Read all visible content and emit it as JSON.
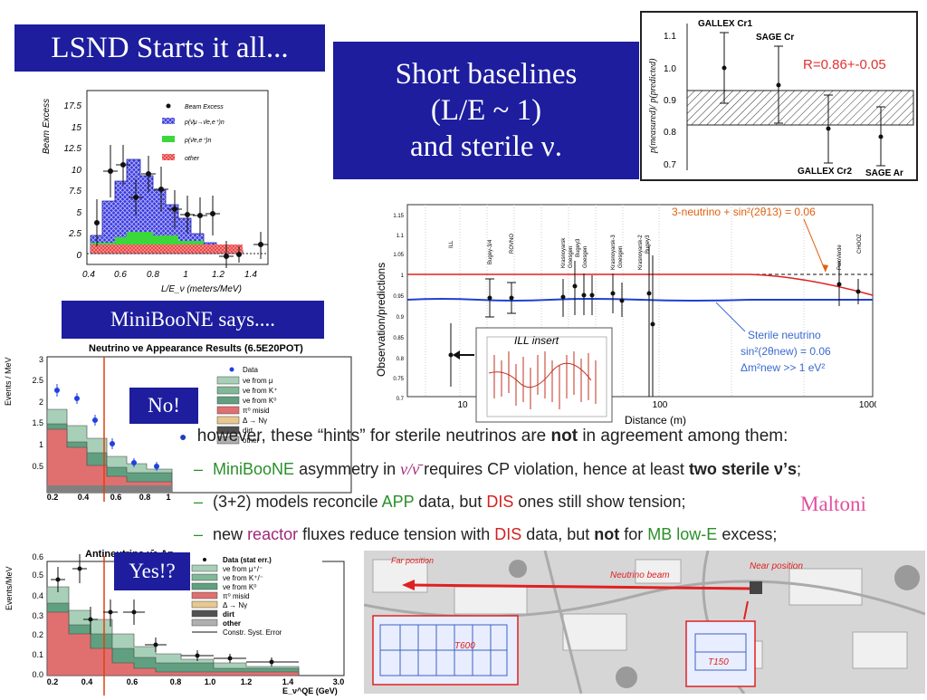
{
  "title_box": "LSND Starts it all...",
  "center_box": [
    "Short baselines",
    "(L/E ~ 1)",
    "and sterile ν."
  ],
  "miniboone_box": "MiniBooNE says....",
  "no_box": "No!",
  "yes_box": "Yes!?",
  "bullets": {
    "main": {
      "pre": "however, these “hints” for sterile neutrinos are ",
      "bold": "not",
      "post": " in agreement among them:"
    },
    "sub1": {
      "g": "MiniBooNE",
      "t1": " asymmetry in ",
      "nu": "ν/ν̄",
      "t2": " requires CP violation, hence at least ",
      "bold": "two sterile ν’s",
      "t3": ";"
    },
    "sub2": {
      "t1": "(3+2) models reconcile ",
      "g": "APP",
      "t2": " data, but ",
      "r": "DIS",
      "t3": " ones still show tension;"
    },
    "sub3": {
      "t1": "new ",
      "m": "reactor",
      "t2": " fluxes reduce tension with ",
      "r": "DIS",
      "t3": " data, but ",
      "bold": "not",
      "t4": " for ",
      "g": "MB low-E",
      "t5": " excess;"
    },
    "maltoni": "Maltoni"
  },
  "gallex_chart": {
    "ylabel": "p(measured)/ p(predicted)",
    "ticks": [
      "1.1",
      "1.0",
      "0.9",
      "0.8",
      "0.7"
    ],
    "annotation": "R=0.86+-0.05",
    "labels": [
      "GALLEX Cr1",
      "SAGE Cr",
      "GALLEX Cr2",
      "SAGE Ar"
    ]
  },
  "lsnd_chart": {
    "ylabel": "Beam Excess",
    "xlabel": "L/E_ν (meters/MeV)",
    "yticks": [
      "17.5",
      "15",
      "12.5",
      "10",
      "7.5",
      "5",
      "2.5",
      "0"
    ],
    "xticks": [
      "0.4",
      "0.6",
      "0.8",
      "1",
      "1.2",
      "1.4"
    ],
    "legend": [
      "Beam Excess",
      "p(ν̄μ→ν̄e,e⁺)n",
      "p(ν̄e,e⁺)n",
      "other"
    ]
  },
  "reactor_chart": {
    "ylabel": "Observation/predictions",
    "xlabel": "Distance (m)",
    "yticks": [
      "1.15",
      "1.1",
      "1.05",
      "1",
      "0.95",
      "0.9",
      "0.85",
      "0.8",
      "0.75",
      "0.7"
    ],
    "xticks": [
      "10",
      "100",
      "1000"
    ],
    "experiments": [
      "ILL",
      "Bugey-3/4",
      "ROVNO",
      "Krasnoyarsk",
      "Goesgen",
      "Bugey3",
      "Goesgen",
      "Krasnoyarsk-3",
      "Goesgen",
      "Krasnoyarsk-2",
      "Bugey3",
      "PaloVerde",
      "CHOOZ"
    ],
    "ann_3nu": "3-neutrino + sin²(2θ13) = 0.06",
    "ann_sterile": [
      "Sterile neutrino",
      "sin²(2θnew) = 0.06",
      "Δm²new >> 1 eV²"
    ],
    "inset_title": "ILL insert"
  },
  "nu_chart": {
    "title": "Neutrino νe Appearance Results (6.5E20POT)",
    "ylabel": "Events / MeV",
    "yticks": [
      "3",
      "2.5",
      "2",
      "1.5",
      "1",
      "0.5"
    ],
    "xticks": [
      "0.2",
      "0.4",
      "0.6",
      "0.8",
      "1"
    ],
    "legend": [
      "Data",
      "νe from μ",
      "νe from K⁺",
      "νe from K⁰",
      "π⁰ misid",
      "Δ → Nγ",
      "dirt",
      "other"
    ]
  },
  "anu_chart": {
    "title": "Antineutrino ν̄e Ap",
    "ylabel": "Events/MeV",
    "yticks": [
      "0.6",
      "0.5",
      "0.4",
      "0.3",
      "0.2",
      "0.1",
      "0.0"
    ],
    "xticks": [
      "0.2",
      "0.4",
      "0.6",
      "0.8",
      "1.0",
      "1.2",
      "1.4",
      "3.0"
    ],
    "xlabel": "E_ν^QE (GeV)",
    "legend": [
      "Data (stat err.)",
      "νe from μ⁺/⁻",
      "νe from K⁺/⁻",
      "νe from K⁰",
      "π⁰ misid",
      "Δ → Nγ",
      "dirt",
      "other",
      "Constr. Syst. Error"
    ]
  },
  "map": {
    "labels": [
      "Far position",
      "Near position",
      "Neutrino beam",
      "T600",
      "T150"
    ]
  }
}
